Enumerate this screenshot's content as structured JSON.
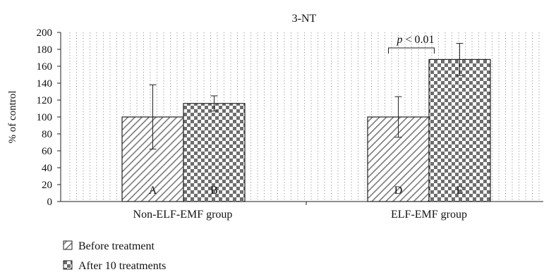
{
  "chart_data": {
    "type": "bar",
    "title": "3-NT",
    "ylabel": "% of control",
    "xlabel": "",
    "ylim": [
      0,
      200
    ],
    "yticks": [
      0,
      20,
      40,
      60,
      80,
      100,
      120,
      140,
      160,
      180,
      200
    ],
    "grid": "vertical dotted",
    "groups": [
      "Non-ELF-EMF group",
      "ELF-EMF group"
    ],
    "series": [
      {
        "name": "Before treatment",
        "pattern": "diagonal-hatch",
        "values": [
          100,
          100
        ],
        "errors": [
          38,
          24
        ],
        "bar_labels": [
          "A",
          "D"
        ]
      },
      {
        "name": "After 10 treatments",
        "pattern": "checkerboard",
        "values": [
          116,
          168
        ],
        "errors": [
          9,
          19
        ],
        "bar_labels": [
          "B",
          "E"
        ]
      }
    ],
    "annotation": {
      "text_italic": "p",
      "text_rest": " < 0.01",
      "between_bars": [
        "D",
        "E"
      ]
    },
    "legend_position": "bottom-left"
  }
}
